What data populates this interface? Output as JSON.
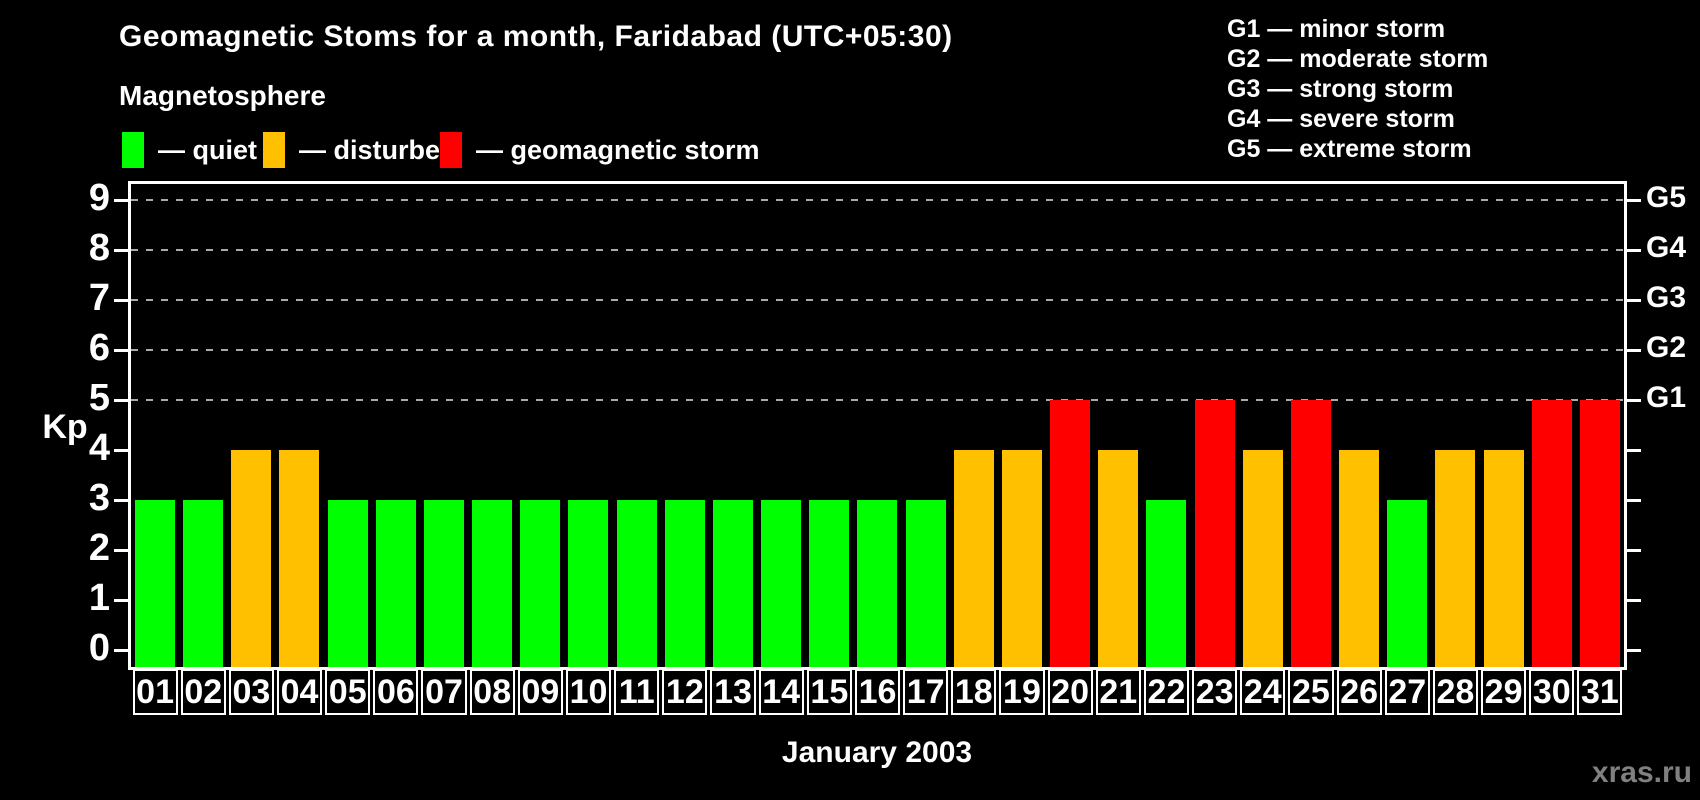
{
  "title": "Geomagnetic Stoms for a month, Faridabad (UTC+05:30)",
  "legend": {
    "heading": "Magnetosphere",
    "items": [
      {
        "key": "quiet",
        "label": "— quiet",
        "color": "#00ff00"
      },
      {
        "key": "disturbed",
        "label": "— disturbed",
        "color": "#ffc000"
      },
      {
        "key": "storm",
        "label": "— geomagnetic storm",
        "color": "#ff0000"
      }
    ]
  },
  "g_scale_legend": [
    "G1 — minor storm",
    "G2 — moderate storm",
    "G3 — strong storm",
    "G4 — severe storm",
    "G5 — extreme storm"
  ],
  "axes": {
    "y_label": "Kp",
    "y_ticks": [
      "0",
      "1",
      "2",
      "3",
      "4",
      "5",
      "6",
      "7",
      "8",
      "9"
    ],
    "x_label": "January 2003"
  },
  "watermark": "xras.ru",
  "chart_data": {
    "type": "bar",
    "title": "Geomagnetic Stoms for a month, Faridabad (UTC+05:30)",
    "xlabel": "January 2003",
    "ylabel": "Kp",
    "ylim": [
      0,
      9
    ],
    "grid": "dashed horizontal lines at Kp 5-9 only",
    "legend_position": "top-left",
    "categories": [
      "01",
      "02",
      "03",
      "04",
      "05",
      "06",
      "07",
      "08",
      "09",
      "10",
      "11",
      "12",
      "13",
      "14",
      "15",
      "16",
      "17",
      "18",
      "19",
      "20",
      "21",
      "22",
      "23",
      "24",
      "25",
      "26",
      "27",
      "28",
      "29",
      "30",
      "31"
    ],
    "values": [
      3,
      3,
      4,
      4,
      3,
      3,
      3,
      3,
      3,
      3,
      3,
      3,
      3,
      3,
      3,
      3,
      3,
      4,
      4,
      5,
      4,
      3,
      5,
      4,
      5,
      4,
      3,
      4,
      4,
      5,
      5
    ],
    "statuses": [
      "quiet",
      "quiet",
      "disturbed",
      "disturbed",
      "quiet",
      "quiet",
      "quiet",
      "quiet",
      "quiet",
      "quiet",
      "quiet",
      "quiet",
      "quiet",
      "quiet",
      "quiet",
      "quiet",
      "quiet",
      "disturbed",
      "disturbed",
      "storm",
      "disturbed",
      "quiet",
      "storm",
      "disturbed",
      "storm",
      "disturbed",
      "quiet",
      "disturbed",
      "disturbed",
      "storm",
      "storm"
    ],
    "status_colors": {
      "quiet": "#00ff00",
      "disturbed": "#ffc000",
      "storm": "#ff0000"
    },
    "gridlines_at": [
      5,
      6,
      7,
      8,
      9
    ],
    "right_axis_labels": {
      "5": "G1",
      "6": "G2",
      "7": "G3",
      "8": "G4",
      "9": "G5"
    }
  }
}
